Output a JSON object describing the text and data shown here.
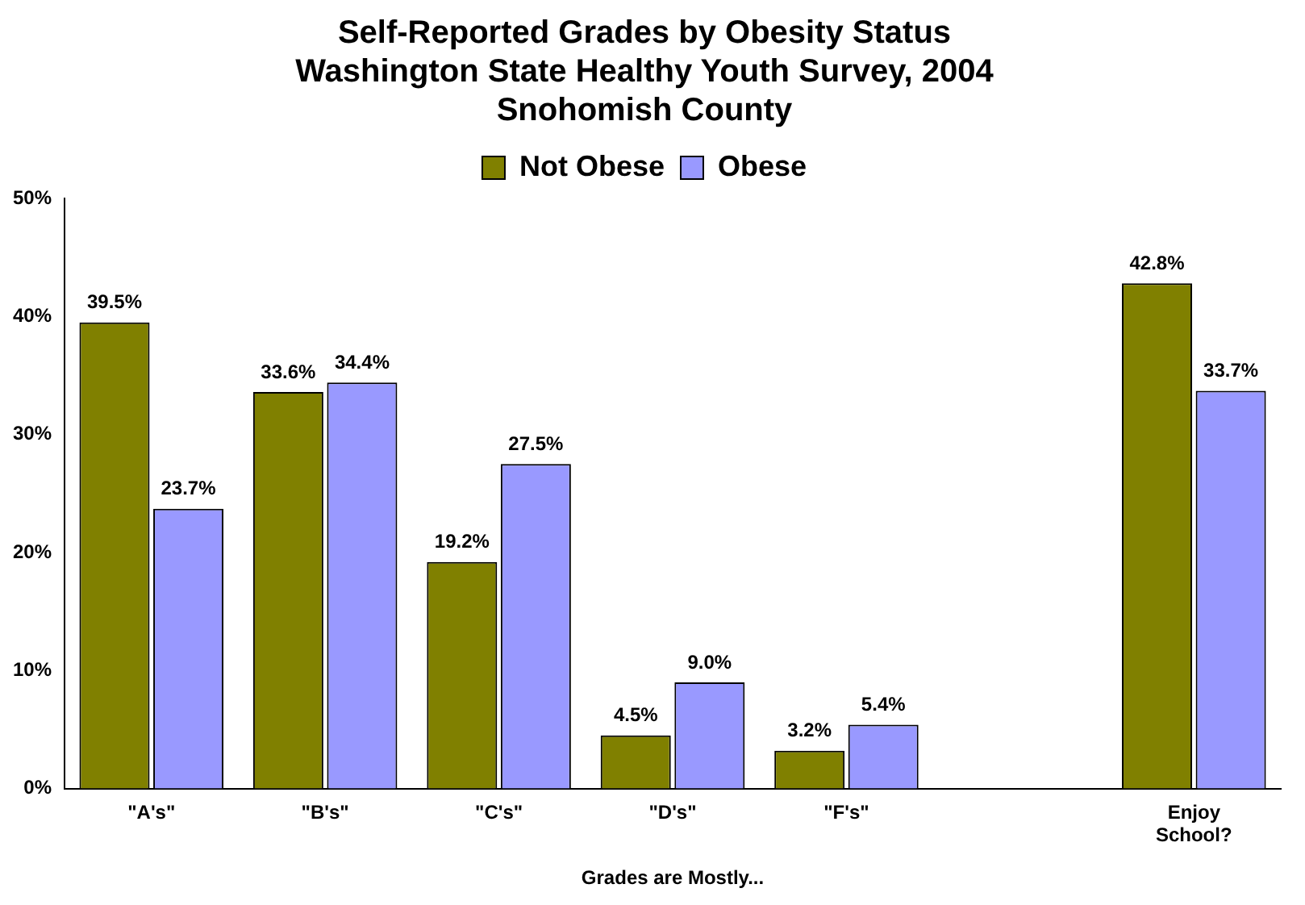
{
  "chart_data": {
    "type": "bar",
    "title": "Self-Reported Grades by Obesity Status\nWashington State Healthy Youth Survey, 2004\nSnohomish County",
    "xlabel": "Grades are Mostly...",
    "categories": [
      "\"A's\"",
      "\"B's\"",
      "\"C's\"",
      "\"D's\"",
      "\"F's\"",
      null,
      "Enjoy School?"
    ],
    "series": [
      {
        "name": "Not Obese",
        "color": "#808000",
        "values": [
          39.5,
          33.6,
          19.2,
          4.5,
          3.2,
          null,
          42.8
        ],
        "value_labels": [
          "39.5%",
          "33.6%",
          "19.2%",
          "4.5%",
          "3.2%",
          null,
          "42.8%"
        ]
      },
      {
        "name": "Obese",
        "color": "#9999ff",
        "values": [
          23.7,
          34.4,
          27.5,
          9.0,
          5.4,
          null,
          33.7
        ],
        "value_labels": [
          "23.7%",
          "34.4%",
          "27.5%",
          "9.0%",
          "5.4%",
          null,
          "33.7%"
        ]
      }
    ],
    "ylim": [
      0,
      50
    ],
    "yticks": [
      {
        "value": 0,
        "label": "0%"
      },
      {
        "value": 10,
        "label": "10%"
      },
      {
        "value": 20,
        "label": "20%"
      },
      {
        "value": 30,
        "label": "30%"
      },
      {
        "value": 40,
        "label": "40%"
      },
      {
        "value": 50,
        "label": "50%"
      }
    ],
    "grid": false,
    "legend": "top"
  }
}
